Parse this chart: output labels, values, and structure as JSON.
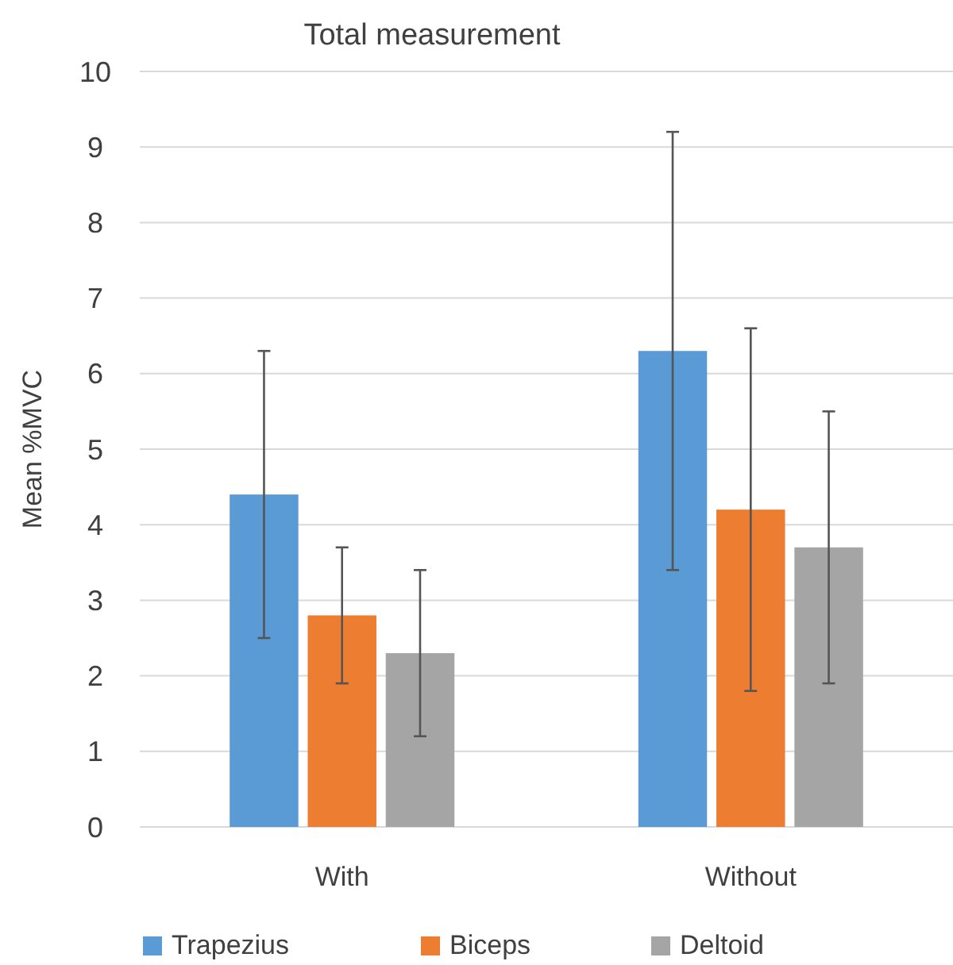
{
  "chart_data": {
    "type": "bar",
    "title": "Total measurement",
    "ylabel": "Mean %MVC",
    "categories": [
      "With",
      "Without"
    ],
    "series": [
      {
        "name": "Trapezius",
        "color": "#5b9bd5",
        "values": [
          4.4,
          6.3
        ],
        "errors": [
          1.9,
          2.9
        ]
      },
      {
        "name": "Biceps",
        "color": "#ed7d31",
        "values": [
          2.8,
          4.2
        ],
        "errors": [
          0.9,
          2.4
        ]
      },
      {
        "name": "Deltoid",
        "color": "#a5a5a5",
        "values": [
          2.3,
          3.7
        ],
        "errors": [
          1.1,
          1.8
        ]
      }
    ],
    "ylim": [
      0,
      10
    ],
    "yticks": [
      0,
      1,
      2,
      3,
      4,
      5,
      6,
      7,
      8,
      9,
      10
    ],
    "grid": "y",
    "legend": "bottom"
  }
}
